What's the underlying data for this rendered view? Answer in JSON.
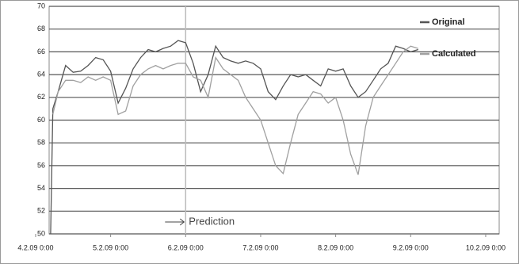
{
  "chart_data": {
    "type": "line",
    "x": [
      4.2,
      4.21,
      4.23,
      4.3,
      4.4,
      4.5,
      4.6,
      4.7,
      4.8,
      4.9,
      5.0,
      5.1,
      5.2,
      5.3,
      5.4,
      5.5,
      5.6,
      5.7,
      5.8,
      5.9,
      6.0,
      6.1,
      6.2,
      6.3,
      6.4,
      6.5,
      6.6,
      6.7,
      6.8,
      6.9,
      7.0,
      7.1,
      7.2,
      7.3,
      7.4,
      7.5,
      7.6,
      7.7,
      7.8,
      7.9,
      8.0,
      8.1,
      8.2,
      8.3,
      8.4,
      8.5,
      8.6,
      8.7,
      8.8,
      8.9,
      9.0,
      9.1
    ],
    "series": [
      {
        "name": "Original",
        "color": "#555555",
        "values": [
          50,
          53.5,
          61,
          62.5,
          64.8,
          64.2,
          64.3,
          64.8,
          65.5,
          65.3,
          64.3,
          61.5,
          62.8,
          64.5,
          65.5,
          66.2,
          66,
          66.3,
          66.5,
          67,
          66.8,
          65,
          62.5,
          64,
          66.5,
          65.5,
          65.2,
          65,
          65.2,
          65,
          64.5,
          62.5,
          61.8,
          63,
          64,
          63.8,
          64,
          63.5,
          63,
          64.5,
          64.3,
          64.5,
          63,
          62,
          62.5,
          63.5,
          64.5,
          65,
          66.5,
          66.3,
          66,
          66.2
        ]
      },
      {
        "name": "Calculated",
        "color": "#a0a0a0",
        "values": [
          null,
          null,
          60.5,
          62.5,
          63.5,
          63.5,
          63.3,
          63.8,
          63.5,
          63.8,
          63.5,
          60.5,
          60.8,
          63,
          64,
          64.5,
          64.8,
          64.5,
          64.8,
          65,
          65,
          63.8,
          63.5,
          62,
          65.5,
          64.5,
          64,
          63.5,
          62,
          61,
          60,
          58,
          56,
          55.3,
          58,
          60.5,
          61.5,
          62.5,
          62.3,
          61.5,
          62,
          60,
          57,
          55.2,
          59.5,
          62,
          63,
          64,
          65,
          66,
          66.5,
          66.3
        ]
      }
    ],
    "xlim": [
      4.18,
      10.18
    ],
    "xticks": [
      {
        "value": 4,
        "label": "4.2.09 0:00"
      },
      {
        "value": 5,
        "label": "5.2.09 0:00"
      },
      {
        "value": 6,
        "label": "6.2.09 0:00"
      },
      {
        "value": 7,
        "label": "7.2.09 0:00"
      },
      {
        "value": 8,
        "label": "8.2.09 0:00"
      },
      {
        "value": 9,
        "label": "9.2.09 0:00"
      },
      {
        "value": 10,
        "label": "10.2.09 0:00"
      }
    ],
    "ylim": [
      50,
      70
    ],
    "yticks": [
      50,
      52,
      54,
      56,
      58,
      60,
      62,
      64,
      66,
      68,
      70
    ],
    "grid": true,
    "legend": "top-right",
    "annotations": [
      {
        "text": "Prediction",
        "x": 6
      }
    ]
  }
}
